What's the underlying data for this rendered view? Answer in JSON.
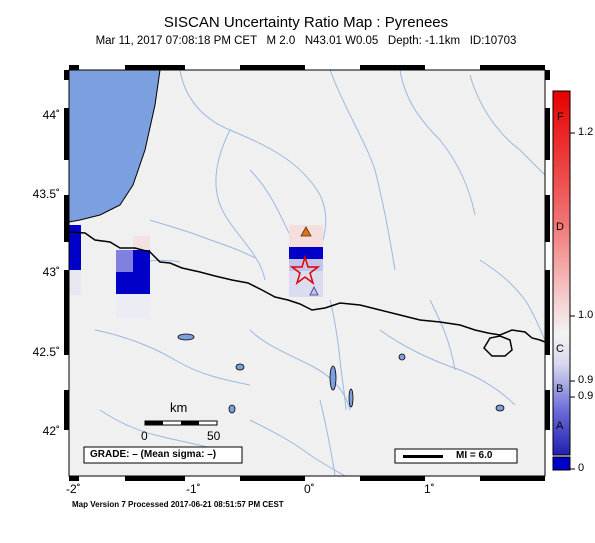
{
  "title": "SISCAN Uncertainty Ratio Map : Pyrenees",
  "subtitle": "Mar 11, 2017 07:08:18 PM CET   M 2.0   N43.01 W0.05   Depth: -1.1km   ID:10703",
  "lat_labels": [
    "44˚",
    "43.5˚",
    "43˚",
    "42.5˚",
    "42˚"
  ],
  "lon_labels": [
    "-2˚",
    "-1˚",
    "0˚",
    "1˚"
  ],
  "scale": {
    "title": "km",
    "min": "0",
    "max": "50"
  },
  "grade": "GRADE: – (Mean sigma: –)",
  "mi": "MI = 6.0",
  "footer": "Map Version 7 Processed 2017-06-21 08:51:57 PM CEST",
  "colorbar": {
    "letters": [
      "F",
      "D",
      "C",
      "B",
      "A"
    ],
    "values": [
      "1.2",
      "1.0",
      "0.9",
      "0.9",
      "0"
    ]
  },
  "colors": {
    "land": "#f0f0f0",
    "sea": "#7b9fdf",
    "river": "#9bb8e0",
    "high": "#e80000",
    "low": "#0000c8"
  }
}
